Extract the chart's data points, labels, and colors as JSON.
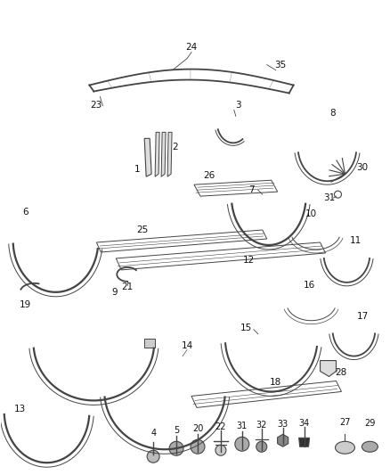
{
  "bg_color": "#ffffff",
  "line_color": "#444444",
  "dpi": 100,
  "figsize": [
    4.38,
    5.33
  ]
}
